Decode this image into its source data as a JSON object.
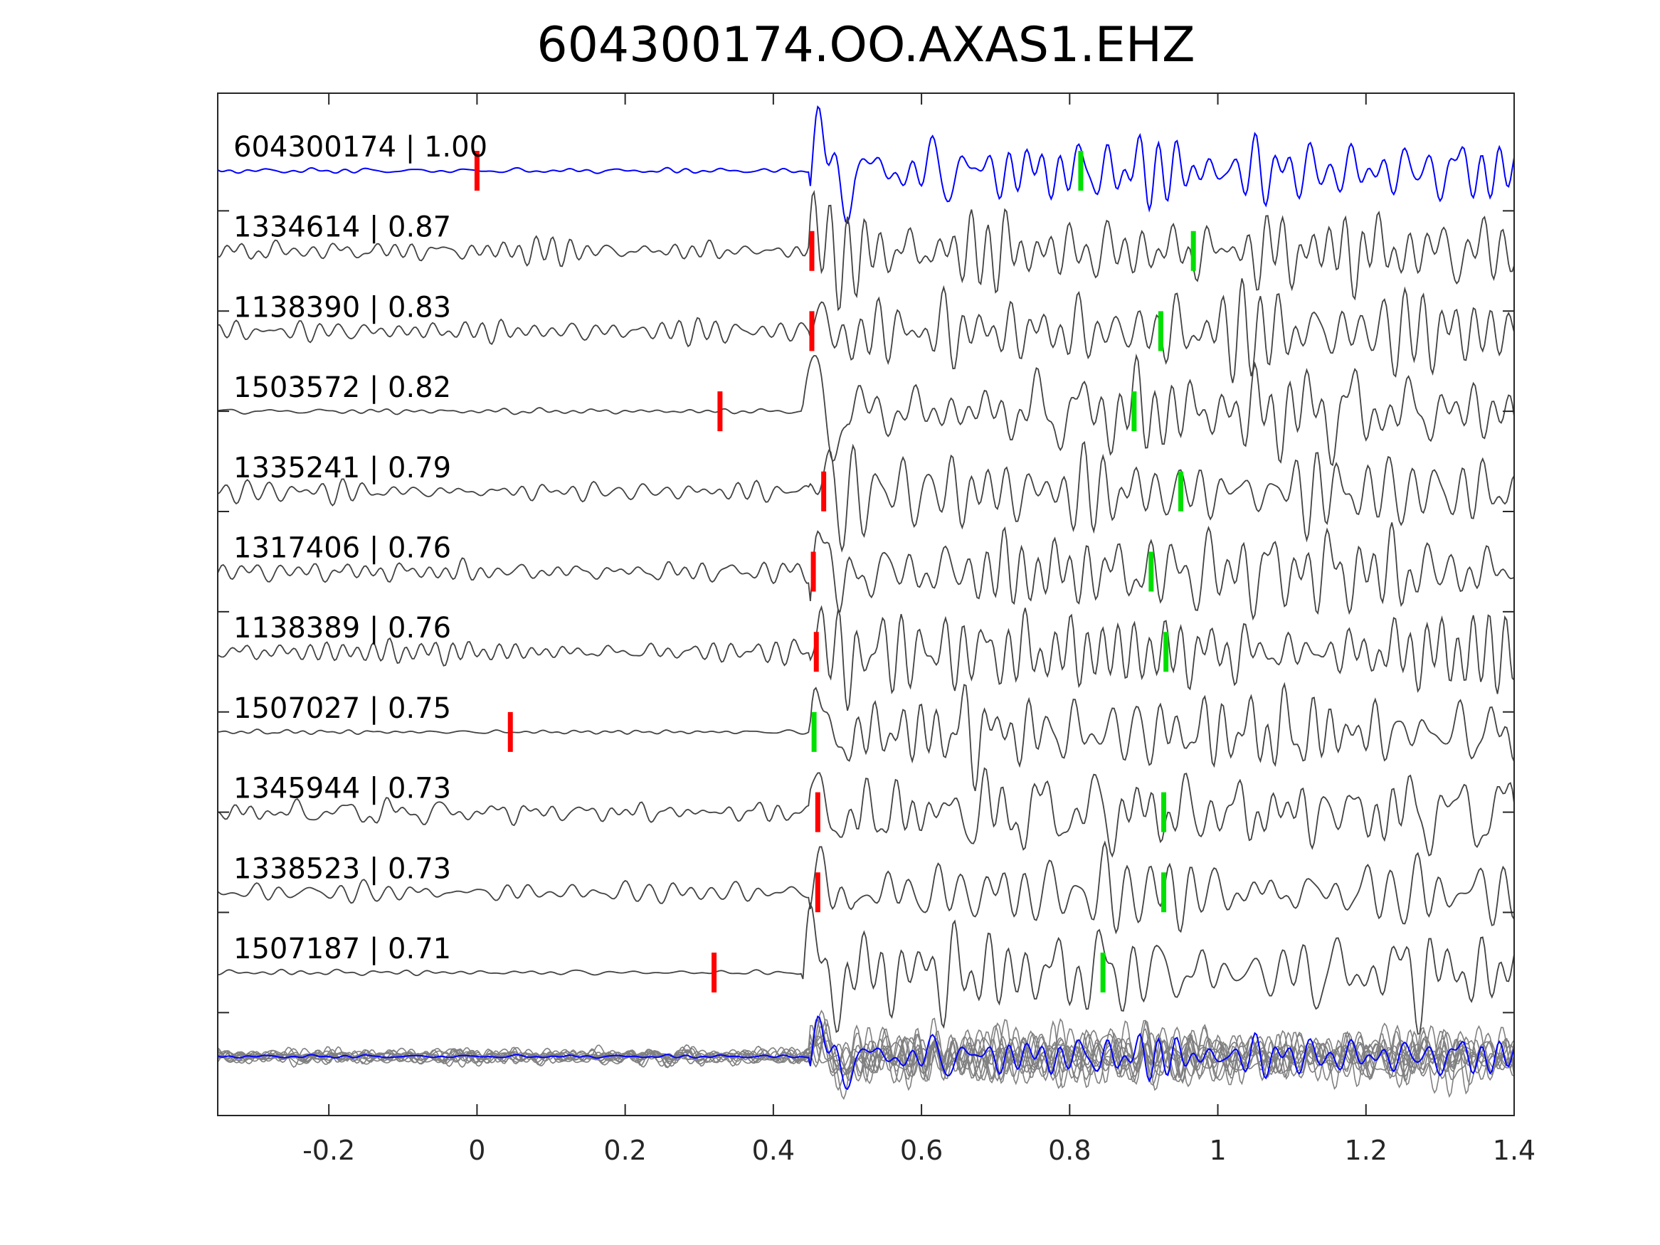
{
  "colors": {
    "reference_trace": "#0000ff",
    "template_trace": "#424242",
    "overlay_trace": "#808080",
    "p_pick": "#ff0000",
    "s_pick": "#00e000",
    "axes": "#262626",
    "text": "#000000"
  },
  "chart_data": {
    "type": "line",
    "title": "604300174.OO.AXAS1.EHZ",
    "xlabel": "",
    "ylabel": "",
    "xlim": [
      -0.35,
      1.4
    ],
    "grid": false,
    "x_ticks": [
      -0.2,
      0,
      0.2,
      0.4,
      0.6,
      0.8,
      1,
      1.2,
      1.4
    ],
    "x_tick_labels": [
      "-0.2",
      "0",
      "0.2",
      "0.4",
      "0.6",
      "0.8",
      "1",
      "1.2",
      "1.4"
    ],
    "traces": [
      {
        "label": "604300174 | 1.00",
        "event_id": "604300174",
        "cc": "1.00",
        "reference": true,
        "onset": 0.45,
        "p_pick": 0.0,
        "s_pick": 0.815
      },
      {
        "label": "1334614 | 0.87",
        "event_id": "1334614",
        "cc": "0.87",
        "reference": false,
        "onset": 0.45,
        "p_pick": 0.452,
        "s_pick": 0.967
      },
      {
        "label": "1138390 | 0.83",
        "event_id": "1138390",
        "cc": "0.83",
        "reference": false,
        "onset": 0.45,
        "p_pick": 0.452,
        "s_pick": 0.923
      },
      {
        "label": "1503572 | 0.82",
        "event_id": "1503572",
        "cc": "0.82",
        "reference": false,
        "onset": 0.44,
        "p_pick": 0.328,
        "s_pick": 0.887
      },
      {
        "label": "1335241 | 0.79",
        "event_id": "1335241",
        "cc": "0.79",
        "reference": false,
        "onset": 0.45,
        "p_pick": 0.468,
        "s_pick": 0.95
      },
      {
        "label": "1317406 | 0.76",
        "event_id": "1317406",
        "cc": "0.76",
        "reference": false,
        "onset": 0.45,
        "p_pick": 0.454,
        "s_pick": 0.91
      },
      {
        "label": "1138389 | 0.76",
        "event_id": "1138389",
        "cc": "0.76",
        "reference": false,
        "onset": 0.45,
        "p_pick": 0.458,
        "s_pick": 0.93
      },
      {
        "label": "1507027 | 0.75",
        "event_id": "1507027",
        "cc": "0.75",
        "reference": false,
        "onset": 0.45,
        "p_pick": 0.045,
        "s_pick": 0.455
      },
      {
        "label": "1345944 | 0.73",
        "event_id": "1345944",
        "cc": "0.73",
        "reference": false,
        "onset": 0.45,
        "p_pick": 0.46,
        "s_pick": 0.927
      },
      {
        "label": "1338523 | 0.73",
        "event_id": "1338523",
        "cc": "0.73",
        "reference": false,
        "onset": 0.45,
        "p_pick": 0.46,
        "s_pick": 0.927
      },
      {
        "label": "1507187 | 0.71",
        "event_id": "1507187",
        "cc": "0.71",
        "reference": false,
        "onset": 0.44,
        "p_pick": 0.32,
        "s_pick": 0.845
      }
    ],
    "overlay": {
      "stacked_count": 11,
      "onset": 0.45
    }
  }
}
